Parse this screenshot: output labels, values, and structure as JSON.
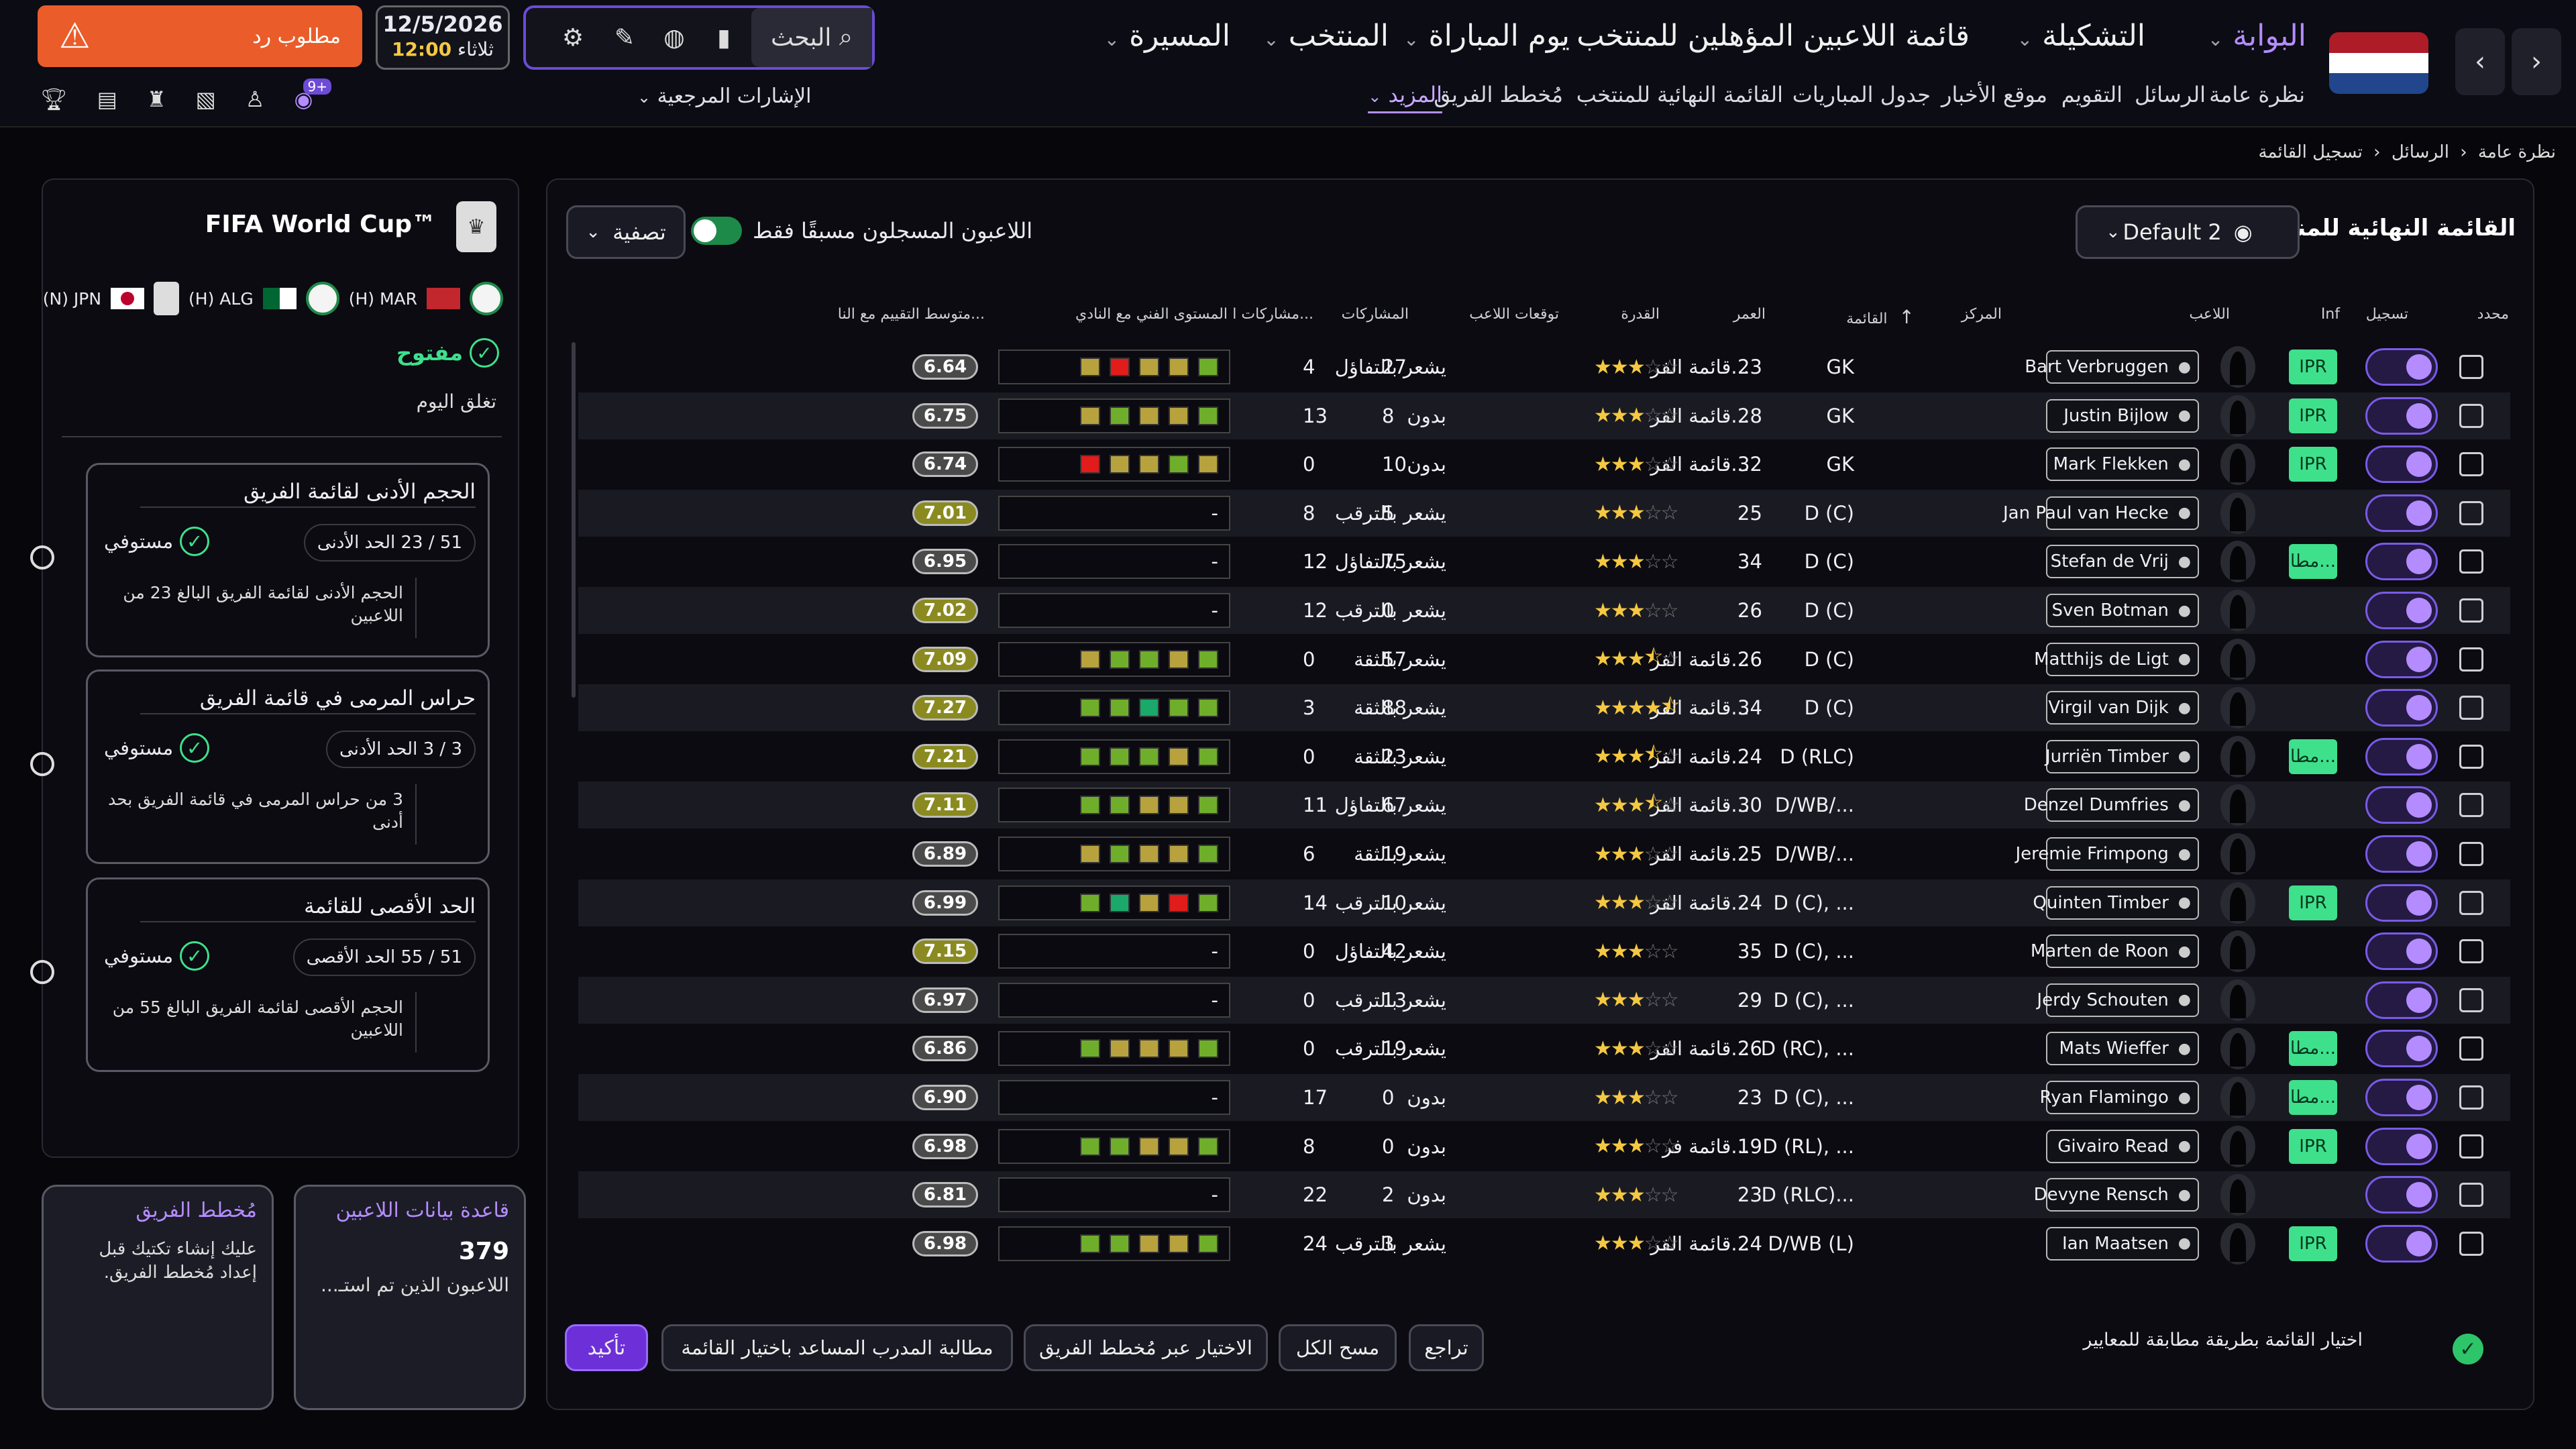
{
  "topbar": {
    "nav_back": "‹",
    "nav_forward": "›",
    "main_nav": [
      {
        "label": "البوابة",
        "active": true
      },
      {
        "label": "التشكيلة",
        "active": false
      },
      {
        "label": "قائمة اللاعبين المؤهلين للمنتخب",
        "active": false
      },
      {
        "label": "يوم المباراة",
        "active": false
      },
      {
        "label": "المنتخب",
        "active": false
      },
      {
        "label": "المسيرة",
        "active": false
      }
    ],
    "sub_nav": [
      "نظرة عامة",
      "الرسائل",
      "التقويم",
      "موقع الأخبار",
      "جدول المباريات",
      "القائمة النهائية للمنتخب",
      "مُخطط الفريق",
      "المزيد"
    ],
    "search_label": "البحث",
    "date": "12/5/2026",
    "day": "ثلاثاء",
    "time": "12:00",
    "alert_label": "مطلوب رد",
    "references_label": "الإشارات المرجعية",
    "notification_badge": "9+",
    "accent_color": "#6c4bd6",
    "alert_color": "#ea5d2a"
  },
  "breadcrumb": [
    "نظرة عامة",
    "الرسائل",
    "تسجيل القائمة"
  ],
  "squad": {
    "title": "القائمة النهائية للمنتخب",
    "view_select": "Default 2",
    "registered_only_label": "اللاعبون المسجلون مسبقًا فقط",
    "filter_label": "تصفية",
    "columns": [
      "محدد",
      "تسجيل",
      "Inf",
      "اللاعب",
      "المركز",
      "القائمة",
      "العمر",
      "القدرة",
      "توقعات اللاعب",
      "المشاركات",
      "مشاركات ا...",
      "المستوى الفني مع النادي",
      "متوسط التقييم مع النا..."
    ],
    "rows": [
      {
        "name": "Bart Verbruggen",
        "inf": "IPR",
        "pos": "GK",
        "list": "قائمة الفر...",
        "age": "23",
        "stars": 3,
        "expect": "يشعر بالتفاؤل",
        "apps": "27",
        "caps": "4",
        "form": [
          "o",
          "r",
          "o",
          "o",
          "g"
        ],
        "rating": "6.64"
      },
      {
        "name": "Justin Bijlow",
        "inf": "IPR",
        "pos": "GK",
        "list": "قائمة الفر...",
        "age": "28",
        "stars": 3,
        "expect": "بدون",
        "apps": "8",
        "caps": "13",
        "form": [
          "o",
          "g",
          "o",
          "o",
          "g"
        ],
        "rating": "6.75"
      },
      {
        "name": "Mark Flekken",
        "inf": "IPR",
        "pos": "GK",
        "list": "قائمة الفر...",
        "age": "32",
        "stars": 3,
        "expect": "بدون",
        "apps": "10",
        "caps": "0",
        "form": [
          "r",
          "o",
          "o",
          "g",
          "o"
        ],
        "rating": "6.74"
      },
      {
        "name": "Jan Paul van Hecke",
        "inf": "",
        "pos": "D (C)",
        "list": "",
        "age": "25",
        "stars": 3,
        "expect": "يشعر بالترقب",
        "apps": "5",
        "caps": "8",
        "form": [],
        "rating": "7.01"
      },
      {
        "name": "Stefan de Vrij",
        "inf": "مطا...",
        "pos": "D (C)",
        "list": "",
        "age": "34",
        "stars": 3,
        "expect": "يشعر بالتفاؤل",
        "apps": "75",
        "caps": "12",
        "form": [],
        "rating": "6.95"
      },
      {
        "name": "Sven Botman",
        "inf": "",
        "pos": "D (C)",
        "list": "",
        "age": "26",
        "stars": 3,
        "expect": "يشعر بالترقب",
        "apps": "0",
        "caps": "12",
        "form": [],
        "rating": "7.02"
      },
      {
        "name": "Matthijs de Ligt",
        "inf": "",
        "pos": "D (C)",
        "list": "قائمة الفر...",
        "age": "26",
        "stars": 3.5,
        "expect": "يشعر بالثقة",
        "apps": "57",
        "caps": "0",
        "form": [
          "o",
          "g",
          "g",
          "o",
          "g"
        ],
        "rating": "7.09"
      },
      {
        "name": "Virgil van Dijk",
        "inf": "",
        "pos": "D (C)",
        "list": "قائمة الفر...",
        "age": "34",
        "stars": 4.5,
        "expect": "يشعر بالثقة",
        "apps": "88",
        "caps": "3",
        "form": [
          "g",
          "g",
          "t",
          "g",
          "g"
        ],
        "rating": "7.27"
      },
      {
        "name": "Jurriën Timber",
        "inf": "مطا...",
        "pos": "D (RLC)",
        "list": "قائمة الفر...",
        "age": "24",
        "stars": 3.5,
        "expect": "يشعر بالثقة",
        "apps": "23",
        "caps": "0",
        "form": [
          "g",
          "g",
          "g",
          "o",
          "g"
        ],
        "rating": "7.21"
      },
      {
        "name": "Denzel Dumfries",
        "inf": "",
        "pos": "D/WB/...",
        "list": "قائمة الفر...",
        "age": "30",
        "stars": 3.5,
        "expect": "يشعر بالتفاؤل",
        "apps": "67",
        "caps": "11",
        "form": [
          "g",
          "g",
          "o",
          "o",
          "g"
        ],
        "rating": "7.11"
      },
      {
        "name": "Jeremie Frimpong",
        "inf": "",
        "pos": "D/WB/...",
        "list": "قائمة الفر...",
        "age": "25",
        "stars": 3,
        "expect": "يشعر بالثقة",
        "apps": "19",
        "caps": "6",
        "form": [
          "o",
          "g",
          "o",
          "o",
          "g"
        ],
        "rating": "6.89"
      },
      {
        "name": "Quinten Timber",
        "inf": "IPR",
        "pos": "D (C), ...",
        "list": "قائمة الفر...",
        "age": "24",
        "stars": 3,
        "expect": "يشعر بالترقب",
        "apps": "10",
        "caps": "14",
        "form": [
          "g",
          "t",
          "o",
          "r",
          "g"
        ],
        "rating": "6.99"
      },
      {
        "name": "Marten de Roon",
        "inf": "",
        "pos": "D (C), ...",
        "list": "",
        "age": "35",
        "stars": 3,
        "expect": "يشعر بالتفاؤل",
        "apps": "42",
        "caps": "0",
        "form": [],
        "rating": "7.15"
      },
      {
        "name": "Jerdy Schouten",
        "inf": "",
        "pos": "D (C), ...",
        "list": "",
        "age": "29",
        "stars": 3,
        "expect": "يشعر بالترقب",
        "apps": "13",
        "caps": "0",
        "form": [],
        "rating": "6.97"
      },
      {
        "name": "Mats Wieffer",
        "inf": "مطا...",
        "pos": "D (RC), ...",
        "list": "قائمة الفر...",
        "age": "26",
        "stars": 3,
        "expect": "يشعر بالترقب",
        "apps": "19",
        "caps": "0",
        "form": [
          "g",
          "o",
          "o",
          "o",
          "g"
        ],
        "rating": "6.86"
      },
      {
        "name": "Ryan Flamingo",
        "inf": "مطا...",
        "pos": "D (C), ...",
        "list": "",
        "age": "23",
        "stars": 3,
        "expect": "بدون",
        "apps": "0",
        "caps": "17",
        "form": [],
        "rating": "6.90"
      },
      {
        "name": "Givairo Read",
        "inf": "IPR",
        "pos": "D (RL), ...",
        "list": "قائمة فر...",
        "age": "19",
        "stars": 3,
        "expect": "بدون",
        "apps": "0",
        "caps": "8",
        "form": [
          "g",
          "g",
          "o",
          "o",
          "g"
        ],
        "rating": "6.98"
      },
      {
        "name": "Devyne Rensch",
        "inf": "",
        "pos": "D (RLC)...",
        "list": "",
        "age": "23",
        "stars": 3,
        "expect": "بدون",
        "apps": "2",
        "caps": "22",
        "form": [],
        "rating": "6.81"
      },
      {
        "name": "Ian Maatsen",
        "inf": "IPR",
        "pos": "D/WB (L)",
        "list": "قائمة الفر...",
        "age": "24",
        "stars": 3,
        "expect": "يشعر بالترقب",
        "apps": "3",
        "caps": "24",
        "form": [
          "g",
          "g",
          "o",
          "o",
          "g"
        ],
        "rating": "6.98"
      }
    ],
    "criteria_label": "اختيار القائمة بطريقة مطابقة للمعايير",
    "actions": [
      "تراجع",
      "مسح الكل",
      "الاختيار عبر مُخطط الفريق",
      "مطالبة المدرب المساعد باختيار القائمة"
    ],
    "confirm_label": "تأكيد"
  },
  "competition": {
    "name": "FIFA World Cup™",
    "teams": [
      {
        "code": "(H) MAR"
      },
      {
        "code": "(H) ALG"
      },
      {
        "code": "(N) JPN"
      }
    ],
    "status": "مفتوح",
    "closes": "تغلق اليوم",
    "requirements": [
      {
        "title": "الحجم الأدنى لقائمة الفريق",
        "value": "51 / 23 الحد الأدنى",
        "met": "مستوفي",
        "desc": "الحجم الأدنى لقائمة الفريق البالغ 23 من اللاعبين"
      },
      {
        "title": "حراس المرمى في قائمة الفريق",
        "value": "3 / 3 الحد الأدنى",
        "met": "مستوفي",
        "desc": "3 من حراس المرمى في قائمة الفريق بحد أدنى"
      },
      {
        "title": "الحد الأقصى للقائمة",
        "value": "51 / 55 الحد الأقصى",
        "met": "مستوفي",
        "desc": "الحجم الأقصى لقائمة الفريق البالغ 55 من اللاعبين"
      }
    ]
  },
  "cards": {
    "database": {
      "title": "قاعدة بيانات اللاعبين",
      "count": "379",
      "desc": "اللاعبون الذين تم استـ..."
    },
    "planner": {
      "title": "مُخطط الفريق",
      "desc": "عليك إنشاء تكتيك قبل إعداد مُخطط الفريق."
    }
  }
}
